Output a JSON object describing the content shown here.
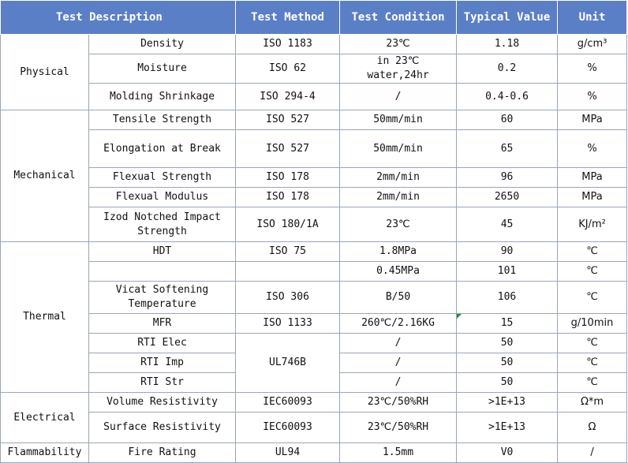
{
  "header": {
    "description": "Test Description",
    "method": "Test Method",
    "condition": "Test Condition",
    "value": "Typical Value",
    "unit": "Unit"
  },
  "groups": {
    "physical": "Physical",
    "mechanical": "Mechanical",
    "thermal": "Thermal",
    "electrical": "Electrical",
    "flammability": "Flammability"
  },
  "rows": [
    {
      "item": "Density",
      "method": "ISO 1183",
      "condition": "23℃",
      "value": "1.18",
      "unit": "g/cm³"
    },
    {
      "item": "Moisture",
      "method": "ISO 62",
      "condition": "in 23℃ water,24hr",
      "value": "0.2",
      "unit": "%"
    },
    {
      "item": "Molding Shrinkage",
      "method": "ISO 294-4",
      "condition": "/",
      "value": "0.4-0.6",
      "unit": "%"
    },
    {
      "item": "Tensile Strength",
      "method": "ISO 527",
      "condition": "50mm/min",
      "value": "60",
      "unit": "MPa"
    },
    {
      "item": "Elongation at Break",
      "method": "ISO 527",
      "condition": "50mm/min",
      "value": "65",
      "unit": "%"
    },
    {
      "item": "Flexual Strength",
      "method": "ISO 178",
      "condition": "2mm/min",
      "value": "96",
      "unit": "MPa"
    },
    {
      "item": "Flexual Modulus",
      "method": "ISO 178",
      "condition": "2mm/min",
      "value": "2650",
      "unit": "MPa"
    },
    {
      "item": "Izod Notched Impact Strength",
      "method": "ISO 180/1A",
      "condition": "23℃",
      "value": "45",
      "unit": "KJ/m²"
    },
    {
      "item": "HDT",
      "method": "ISO 75",
      "condition": "1.8MPa",
      "value": "90",
      "unit": "℃"
    },
    {
      "item": "",
      "method": "",
      "condition": "0.45MPa",
      "value": "101",
      "unit": "℃"
    },
    {
      "item": "Vicat Softening Temperature",
      "method": "ISO 306",
      "condition": "B/50",
      "value": "106",
      "unit": "℃"
    },
    {
      "item": "MFR",
      "method": "ISO 1133",
      "condition": "260℃/2.16KG",
      "value": "15",
      "unit": "g/10min"
    },
    {
      "item": "RTI Elec",
      "method": "UL746B",
      "condition": "/",
      "value": "50",
      "unit": "℃"
    },
    {
      "item": "RTI Imp",
      "method": "",
      "condition": "/",
      "value": "50",
      "unit": "℃"
    },
    {
      "item": "RTI Str",
      "method": "",
      "condition": "/",
      "value": "50",
      "unit": "℃"
    },
    {
      "item": "Volume Resistivity",
      "method": "IEC60093",
      "condition": "23℃/50%RH",
      "value": ">1E+13",
      "unit": "Ω*m"
    },
    {
      "item": "Surface Resistivity",
      "method": "IEC60093",
      "condition": "23℃/50%RH",
      "value": ">1E+13",
      "unit": "Ω"
    },
    {
      "item": "Fire Rating",
      "method": "UL94",
      "condition": "1.5mm",
      "value": "V0",
      "unit": "/"
    }
  ]
}
